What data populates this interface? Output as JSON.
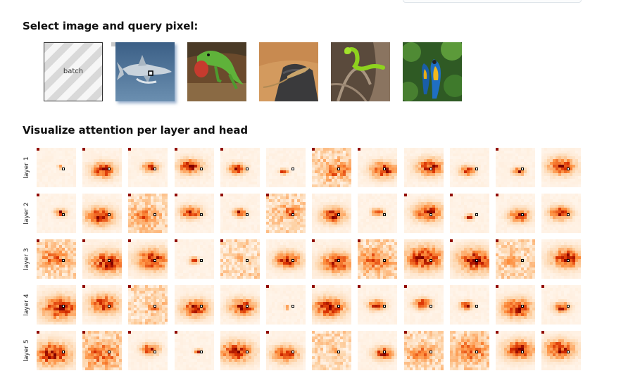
{
  "sections": {
    "select_title": "Select image and query pixel:",
    "visualize_title": "Visualize attention per layer and head"
  },
  "thumbnails": [
    {
      "name": "batch",
      "label": "batch"
    },
    {
      "name": "shark",
      "selected": true
    },
    {
      "name": "lizard-green"
    },
    {
      "name": "lizard-rock"
    },
    {
      "name": "snake"
    },
    {
      "name": "parrots"
    }
  ],
  "layers": [
    {
      "label": "layer 1"
    },
    {
      "label": "layer 2"
    },
    {
      "label": "layer 3"
    },
    {
      "label": "layer 4"
    },
    {
      "label": "layer 5"
    }
  ],
  "heads_per_layer": 12,
  "colors": {
    "heatmap_low": "#fff5eb",
    "heatmap_high": "#7f0000",
    "query_marker": "#000000"
  }
}
